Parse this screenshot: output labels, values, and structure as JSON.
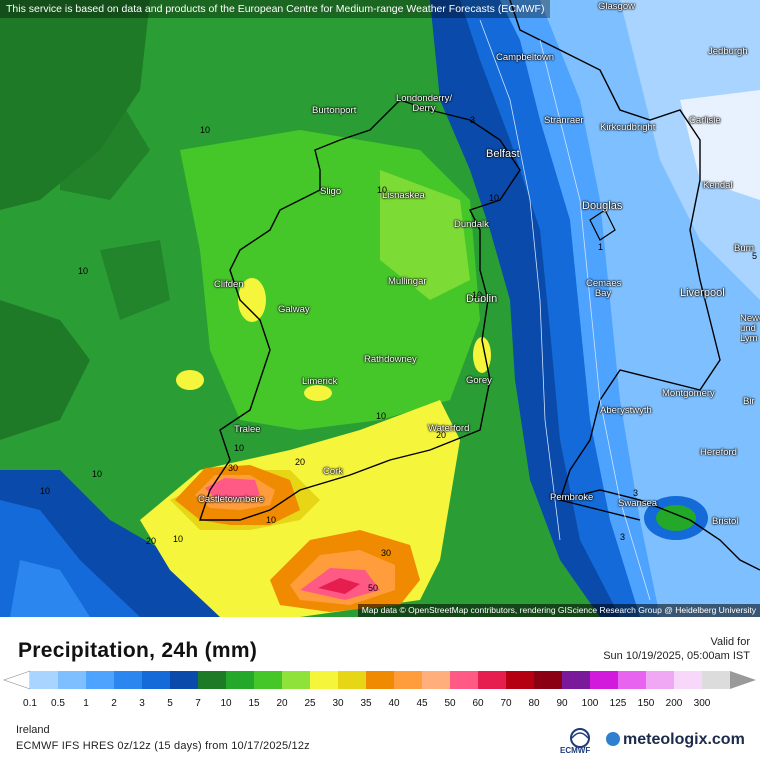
{
  "attribution_top": "This service is based on data and products of the European Centre for Medium-range Weather Forecasts (ECMWF)",
  "attribution_bottom": "Map data © OpenStreetMap contributors, rendering GIScience Research Group @ Heidelberg University",
  "title": "Precipitation, 24h (mm)",
  "valid_label": "Valid for",
  "valid_time": "Sun 10/19/2025, 05:00am IST",
  "region": "Ireland",
  "model_run": "ECMWF IFS HRES 0z/12z (15 days) from 10/17/2025/12z",
  "logos": {
    "ecmwf": "ECMWF",
    "brand": "meteologix.com"
  },
  "cities": [
    {
      "name": "Glasgow"
    },
    {
      "name": "Jedburgh"
    },
    {
      "name": "Campbeltown"
    },
    {
      "name": "Londonderry/ Derry"
    },
    {
      "name": "Burtonport"
    },
    {
      "name": "Stranraer"
    },
    {
      "name": "Kirkcudbright"
    },
    {
      "name": "Carlisle"
    },
    {
      "name": "Belfast"
    },
    {
      "name": "Kendal"
    },
    {
      "name": "Sligo"
    },
    {
      "name": "Lisnaskea"
    },
    {
      "name": "Douglas"
    },
    {
      "name": "Dundalk"
    },
    {
      "name": "Burn"
    },
    {
      "name": "Clifden"
    },
    {
      "name": "Mullingar"
    },
    {
      "name": "Cemaes Bay"
    },
    {
      "name": "Liverpool"
    },
    {
      "name": "Dublin"
    },
    {
      "name": "Galway"
    },
    {
      "name": "Newc und Lym"
    },
    {
      "name": "Rathdowney"
    },
    {
      "name": "Limerick"
    },
    {
      "name": "Gorey"
    },
    {
      "name": "Montgomery"
    },
    {
      "name": "Aberystwyth"
    },
    {
      "name": "Bir"
    },
    {
      "name": "Tralee"
    },
    {
      "name": "Waterford"
    },
    {
      "name": "Hereford"
    },
    {
      "name": "Cork"
    },
    {
      "name": "Castletownbere"
    },
    {
      "name": "Pembroke"
    },
    {
      "name": "Swansea"
    },
    {
      "name": "Bristol"
    }
  ],
  "contour_labels": [
    "10",
    "10",
    "10",
    "10",
    "10",
    "10",
    "10",
    "10",
    "10",
    "10",
    "10",
    "20",
    "20",
    "20",
    "30",
    "30",
    "50",
    "5",
    "3",
    "1",
    "3",
    "3"
  ],
  "legend": {
    "ticks": [
      "0.1",
      "0.5",
      "1",
      "2",
      "3",
      "5",
      "7",
      "10",
      "15",
      "20",
      "25",
      "30",
      "35",
      "40",
      "45",
      "50",
      "60",
      "70",
      "80",
      "90",
      "100",
      "125",
      "150",
      "200",
      "300"
    ],
    "colors": [
      "#a8d4ff",
      "#7ec0ff",
      "#4ea3ff",
      "#2b86f0",
      "#136ad8",
      "#0a4aaa",
      "#1f7a28",
      "#23a82a",
      "#45c72a",
      "#8fe23a",
      "#f5f53c",
      "#e6d616",
      "#f08a00",
      "#ff9d3c",
      "#ffae7c",
      "#ff5a86",
      "#e61e50",
      "#b40010",
      "#8c0014",
      "#7a1a9a",
      "#d21adc",
      "#e864f0",
      "#f0a8f5",
      "#f8d8fa",
      "#dcdcdc"
    ],
    "left_cap": "#ffffff",
    "right_cap": "#9a9a9a"
  }
}
